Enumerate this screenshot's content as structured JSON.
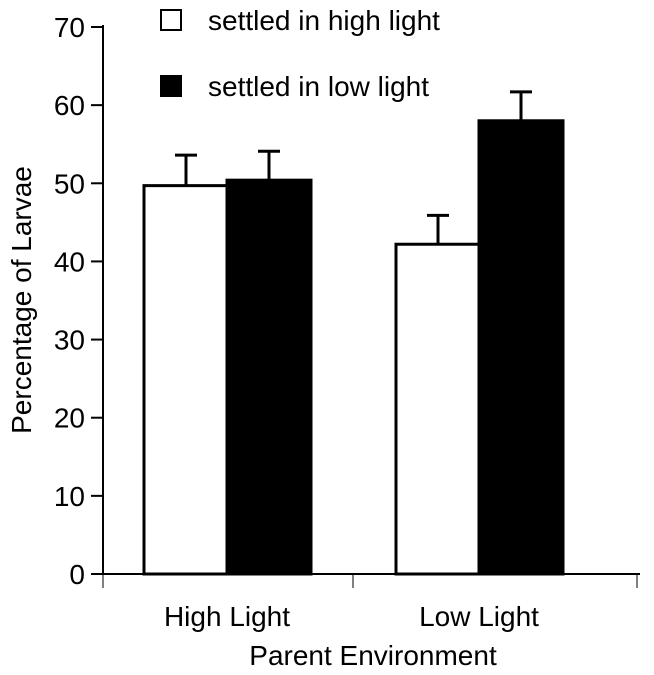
{
  "chart_data": {
    "type": "bar",
    "title": "",
    "xlabel": "Parent Environment",
    "ylabel": "Percentage of Larvae",
    "ylim": [
      0,
      70
    ],
    "yticks": [
      0,
      10,
      20,
      30,
      40,
      50,
      60,
      70
    ],
    "categories": [
      "High Light",
      "Low Light"
    ],
    "series": [
      {
        "name": "settled in high light",
        "color": "#ffffff",
        "values": [
          49.7,
          42.2
        ],
        "error": [
          3.9,
          3.7
        ]
      },
      {
        "name": "settled in low light",
        "color": "#000000",
        "values": [
          50.4,
          58.0
        ],
        "error": [
          3.7,
          3.7
        ]
      }
    ],
    "legend_position": "top",
    "grid": false
  }
}
